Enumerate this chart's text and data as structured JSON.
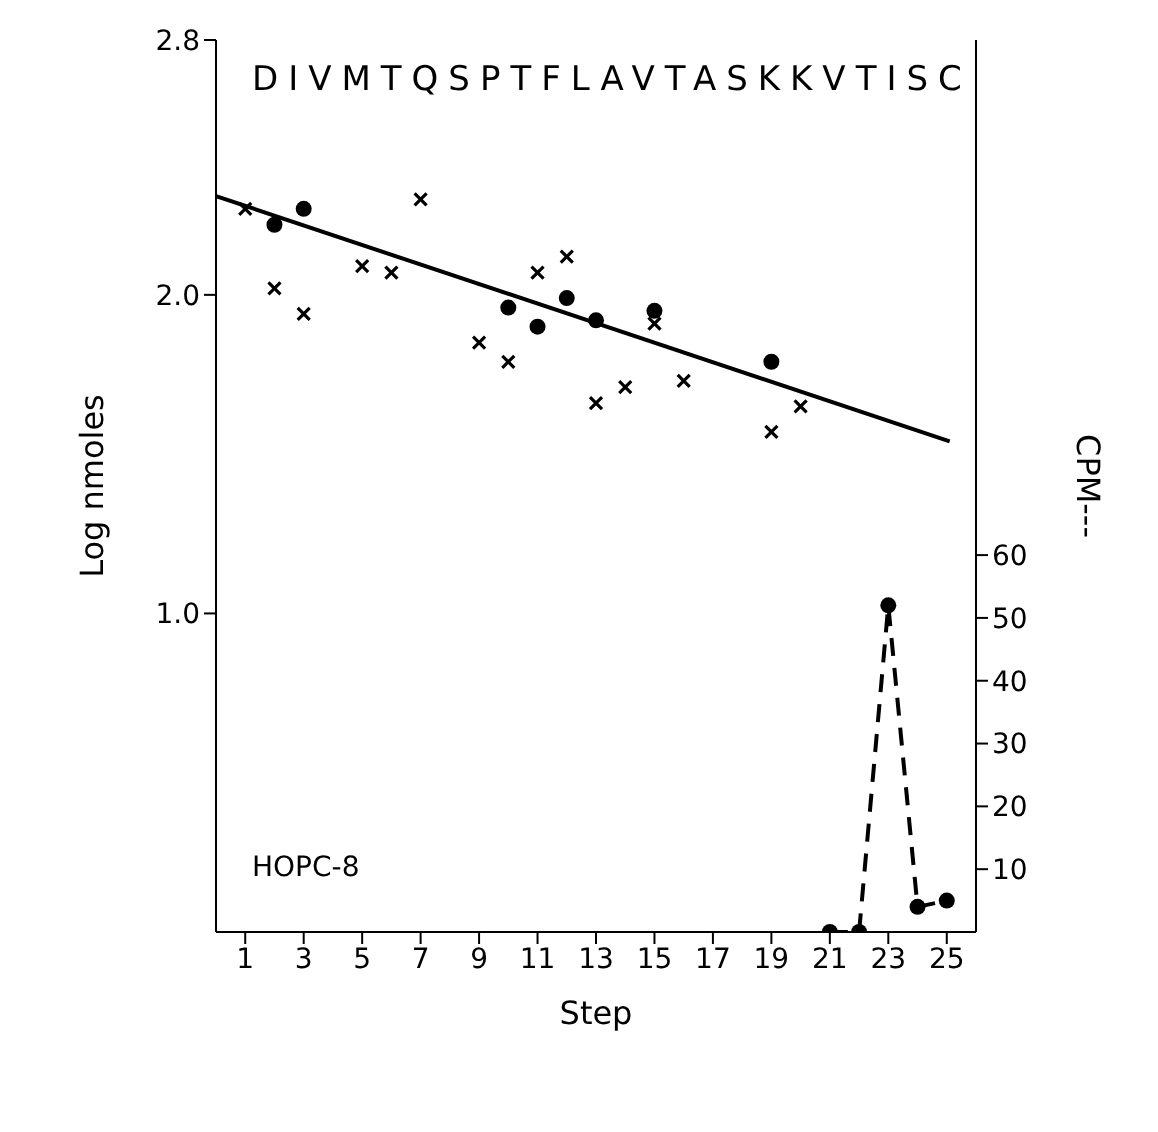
{
  "chart_data": {
    "type": "scatter",
    "xlabel": "Step",
    "ylabel": "Log nmoles",
    "y2label": "CPM---",
    "annotations": [
      "DIVMTQSPTFLAVTASKKVTISC",
      "HOPC-8"
    ],
    "xlim": [
      0,
      26
    ],
    "xticks": [
      1,
      3,
      5,
      7,
      9,
      11,
      13,
      15,
      17,
      19,
      21,
      23,
      25
    ],
    "ylim": [
      0,
      2.8
    ],
    "yticks": [
      {
        "value": 1,
        "label": "1.0"
      },
      {
        "value": 2,
        "label": "2.0"
      },
      {
        "value": 2.8,
        "label": "2.8"
      }
    ],
    "y2lim": [
      0,
      142
    ],
    "y2ticks": [
      10,
      20,
      30,
      40,
      50,
      60
    ],
    "series": [
      {
        "marker": "cross",
        "color": "#000000",
        "x": [
          1,
          2,
          3,
          5,
          6,
          7,
          9,
          10,
          11,
          12,
          13,
          14,
          15,
          16,
          19,
          20
        ],
        "values": [
          2.27,
          2.02,
          1.94,
          2.09,
          2.07,
          2.3,
          1.85,
          1.79,
          2.07,
          2.12,
          1.66,
          1.71,
          1.91,
          1.73,
          1.57,
          1.65
        ]
      },
      {
        "marker": "circle",
        "color": "#000000",
        "x": [
          2,
          3,
          10,
          11,
          12,
          13,
          15,
          19
        ],
        "values": [
          2.22,
          2.27,
          1.96,
          1.9,
          1.99,
          1.92,
          1.95,
          1.79
        ]
      },
      {
        "type": "line",
        "marker": "none",
        "line_style": "solid",
        "color": "#000000",
        "x": [
          0,
          25.1
        ],
        "values": [
          2.31,
          1.54
        ]
      },
      {
        "type": "line",
        "axis": "y2",
        "marker": "circle",
        "line_style": "dashed",
        "color": "#000000",
        "x": [
          21,
          22,
          23,
          24,
          25
        ],
        "values": [
          0,
          0,
          52,
          4,
          5
        ]
      }
    ]
  }
}
